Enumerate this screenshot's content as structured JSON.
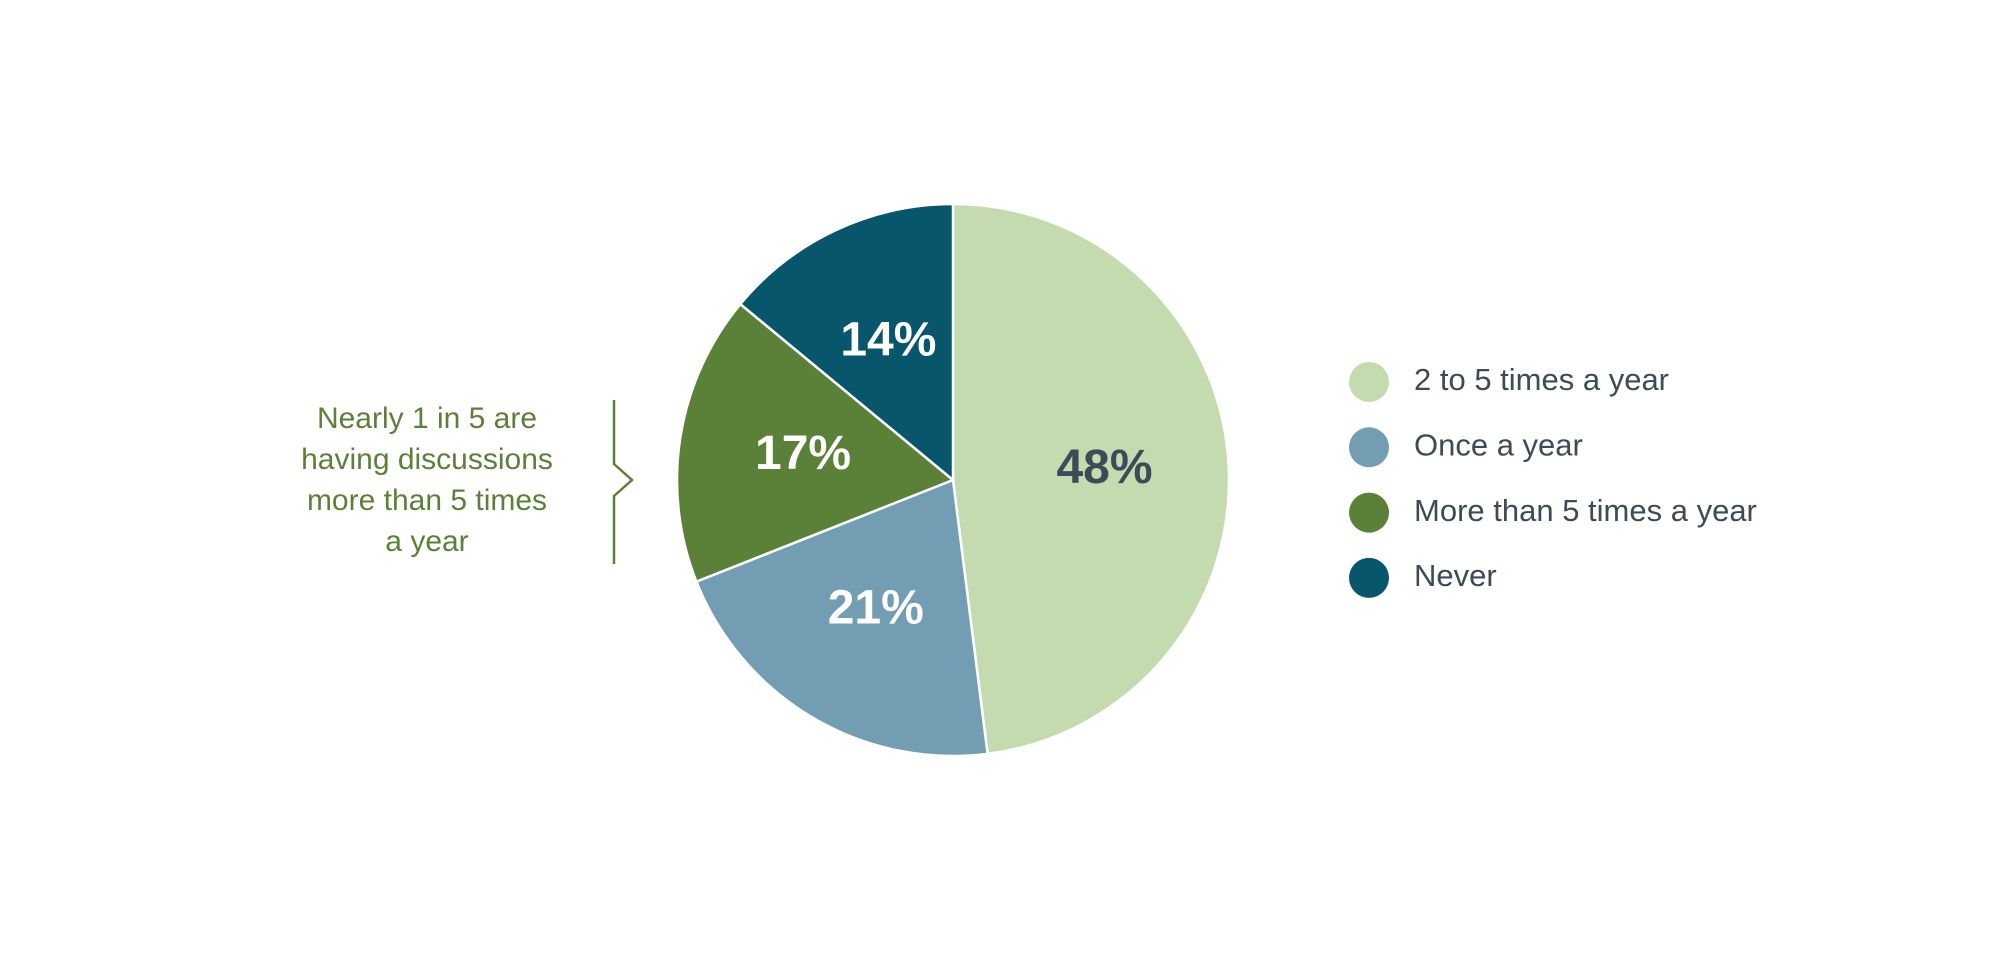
{
  "chart_data": {
    "type": "pie",
    "categories": [
      "2 to 5 times a year",
      "Once a year",
      "More than 5 times a year",
      "Never"
    ],
    "values": [
      48,
      21,
      17,
      14
    ],
    "value_labels": [
      "48%",
      "21%",
      "17%",
      "14%"
    ],
    "colors": [
      "#c4dbb0",
      "#739db3",
      "#5b8139",
      "#07566b"
    ],
    "label_colors": [
      "#3d4a57",
      "#ffffff",
      "#ffffff",
      "#ffffff"
    ],
    "legend": "right",
    "annotation": [
      "Nearly 1 in 5 are",
      "having discussions",
      "more than 5 times",
      "a year"
    ]
  }
}
